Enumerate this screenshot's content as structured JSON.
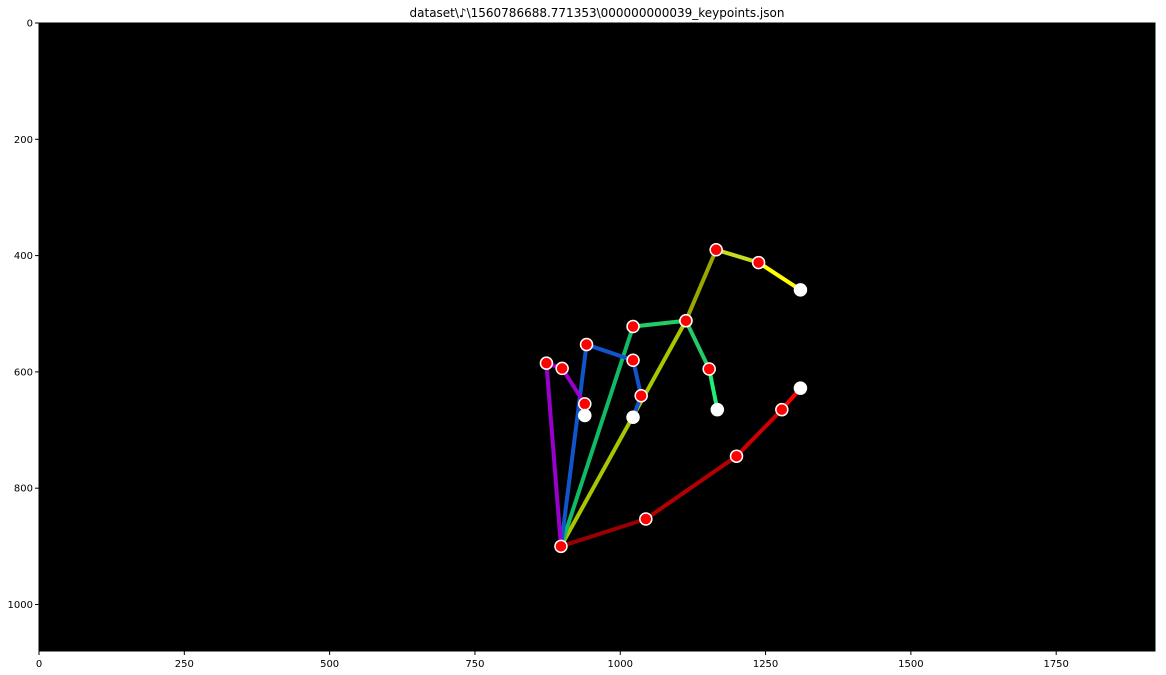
{
  "chart_data": {
    "type": "scatter",
    "title": "dataset\\♪\\1560786688.771353\\000000000039_keypoints.json",
    "xlabel": "",
    "ylabel": "",
    "xlim": [
      0,
      1920
    ],
    "ylim": [
      1080,
      0
    ],
    "y_inverted": true,
    "grid": false,
    "background": "#000000",
    "x_ticks": [
      0,
      250,
      500,
      750,
      1000,
      1250,
      1500,
      1750
    ],
    "y_ticks": [
      0,
      200,
      400,
      600,
      800,
      1000
    ],
    "keypoints": [
      {
        "id": 0,
        "x": 898,
        "y": 900,
        "color": "#ff0000"
      },
      {
        "id": 1,
        "x": 1044,
        "y": 853,
        "color": "#ff0000"
      },
      {
        "id": 2,
        "x": 1200,
        "y": 745,
        "color": "#ff0000"
      },
      {
        "id": 3,
        "x": 1278,
        "y": 665,
        "color": "#ff0000"
      },
      {
        "id": 4,
        "x": 1310,
        "y": 628,
        "color": "#ffffff"
      },
      {
        "id": 5,
        "x": 1113,
        "y": 512,
        "color": "#ff0000"
      },
      {
        "id": 6,
        "x": 1165,
        "y": 390,
        "color": "#ff0000"
      },
      {
        "id": 7,
        "x": 1238,
        "y": 412,
        "color": "#ff0000"
      },
      {
        "id": 8,
        "x": 1310,
        "y": 459,
        "color": "#ffffff"
      },
      {
        "id": 9,
        "x": 1022,
        "y": 522,
        "color": "#ff0000"
      },
      {
        "id": 10,
        "x": 1113,
        "y": 512,
        "color": "#ff0000"
      },
      {
        "id": 11,
        "x": 1153,
        "y": 595,
        "color": "#ff0000"
      },
      {
        "id": 12,
        "x": 1167,
        "y": 665,
        "color": "#ffffff"
      },
      {
        "id": 13,
        "x": 942,
        "y": 553,
        "color": "#ff0000"
      },
      {
        "id": 14,
        "x": 1022,
        "y": 580,
        "color": "#ff0000"
      },
      {
        "id": 15,
        "x": 1036,
        "y": 641,
        "color": "#ff0000"
      },
      {
        "id": 16,
        "x": 1022,
        "y": 678,
        "color": "#ffffff"
      },
      {
        "id": 17,
        "x": 873,
        "y": 585,
        "color": "#ff0000"
      },
      {
        "id": 18,
        "x": 900,
        "y": 594,
        "color": "#ff0000"
      },
      {
        "id": 19,
        "x": 939,
        "y": 655,
        "color": "#ff0000"
      },
      {
        "id": 20,
        "x": 939,
        "y": 675,
        "color": "#ffffff"
      }
    ],
    "bones": [
      {
        "from": 0,
        "to": 1,
        "color": "#990000"
      },
      {
        "from": 1,
        "to": 2,
        "color": "#b30000"
      },
      {
        "from": 2,
        "to": 3,
        "color": "#cc0000"
      },
      {
        "from": 3,
        "to": 4,
        "color": "#ff0000"
      },
      {
        "from": 0,
        "to": 5,
        "color": "#aac600"
      },
      {
        "from": 5,
        "to": 6,
        "color": "#99a800"
      },
      {
        "from": 6,
        "to": 7,
        "color": "#c8dc20"
      },
      {
        "from": 7,
        "to": 8,
        "color": "#ffff00"
      },
      {
        "from": 0,
        "to": 9,
        "color": "#11bb66"
      },
      {
        "from": 9,
        "to": 10,
        "color": "#22cc66"
      },
      {
        "from": 10,
        "to": 11,
        "color": "#22cc66"
      },
      {
        "from": 11,
        "to": 12,
        "color": "#22ee77"
      },
      {
        "from": 0,
        "to": 13,
        "color": "#1155cc"
      },
      {
        "from": 13,
        "to": 14,
        "color": "#1155cc"
      },
      {
        "from": 14,
        "to": 15,
        "color": "#1155cc"
      },
      {
        "from": 15,
        "to": 16,
        "color": "#1155cc"
      },
      {
        "from": 0,
        "to": 17,
        "color": "#9900cc"
      },
      {
        "from": 17,
        "to": 18,
        "color": "#9900cc"
      },
      {
        "from": 18,
        "to": 19,
        "color": "#9900cc"
      },
      {
        "from": 19,
        "to": 20,
        "color": "#9900cc"
      }
    ]
  }
}
